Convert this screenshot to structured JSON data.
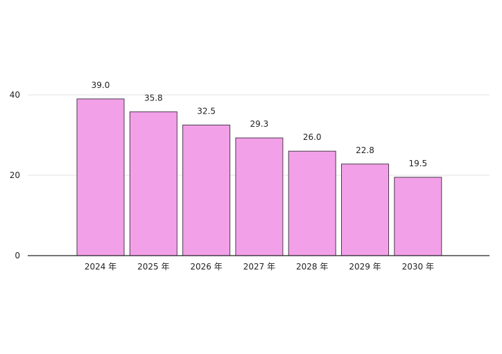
{
  "chart_data": {
    "type": "bar",
    "categories": [
      "2024 年",
      "2025 年",
      "2026 年",
      "2027 年",
      "2028 年",
      "2029 年",
      "2030 年"
    ],
    "values": [
      39.0,
      35.8,
      32.5,
      29.3,
      26.0,
      22.8,
      19.5
    ],
    "value_labels": [
      "39.0",
      "35.8",
      "32.5",
      "29.3",
      "26.0",
      "22.8",
      "19.5"
    ],
    "yticks": [
      0,
      20,
      40
    ],
    "ylim": [
      0,
      40
    ],
    "grid": true,
    "title": "",
    "xlabel": "",
    "ylabel": "",
    "bar_color": "#f2a0e8",
    "bar_edge_color": "#4a3a4a"
  }
}
